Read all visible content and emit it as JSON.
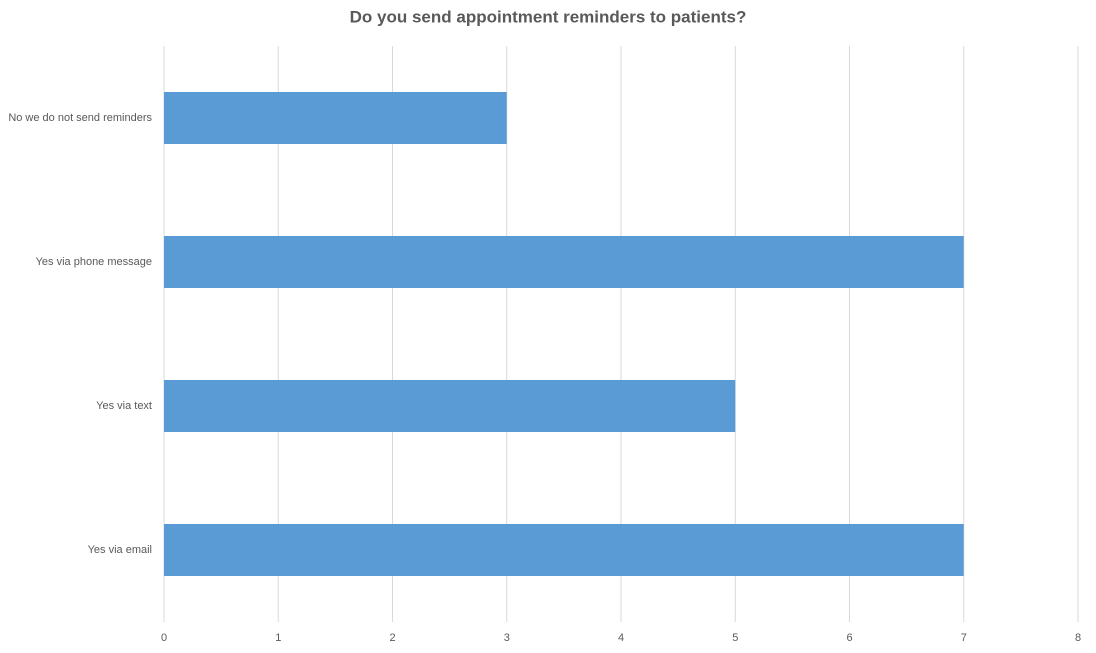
{
  "chart_data": {
    "type": "barh",
    "title": "Do you send appointment reminders to patients?",
    "categories": [
      "No we do not send reminders",
      "Yes via phone message",
      "Yes via text",
      "Yes via email"
    ],
    "values": [
      3,
      7,
      5,
      7
    ],
    "color": "#5b9bd5",
    "xlim": [
      0,
      8
    ],
    "xticks": [
      0,
      1,
      2,
      3,
      4,
      5,
      6,
      7,
      8
    ],
    "grid": true
  }
}
